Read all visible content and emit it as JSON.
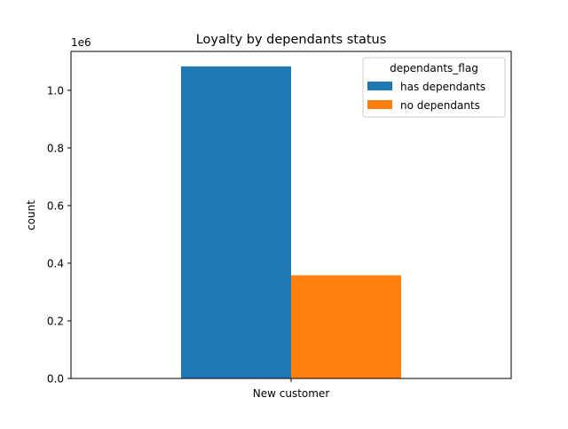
{
  "chart_data": {
    "type": "bar",
    "title": "Loyalty by dependants status",
    "xlabel": "",
    "ylabel": "count",
    "offset_label": "1e6",
    "categories": [
      "New customer"
    ],
    "series": [
      {
        "name": "has dependants",
        "values": [
          1083000
        ],
        "color": "#1f77b4"
      },
      {
        "name": "no dependants",
        "values": [
          358000
        ],
        "color": "#ff7f0e"
      }
    ],
    "ylim": [
      0,
      1135000
    ],
    "yticks": [
      0,
      200000,
      400000,
      600000,
      800000,
      1000000
    ],
    "ytick_labels": [
      "0.0",
      "0.2",
      "0.4",
      "0.6",
      "0.8",
      "1.0"
    ],
    "grid": false,
    "legend": {
      "title": "dependants_flag",
      "placement": "top-right"
    }
  }
}
